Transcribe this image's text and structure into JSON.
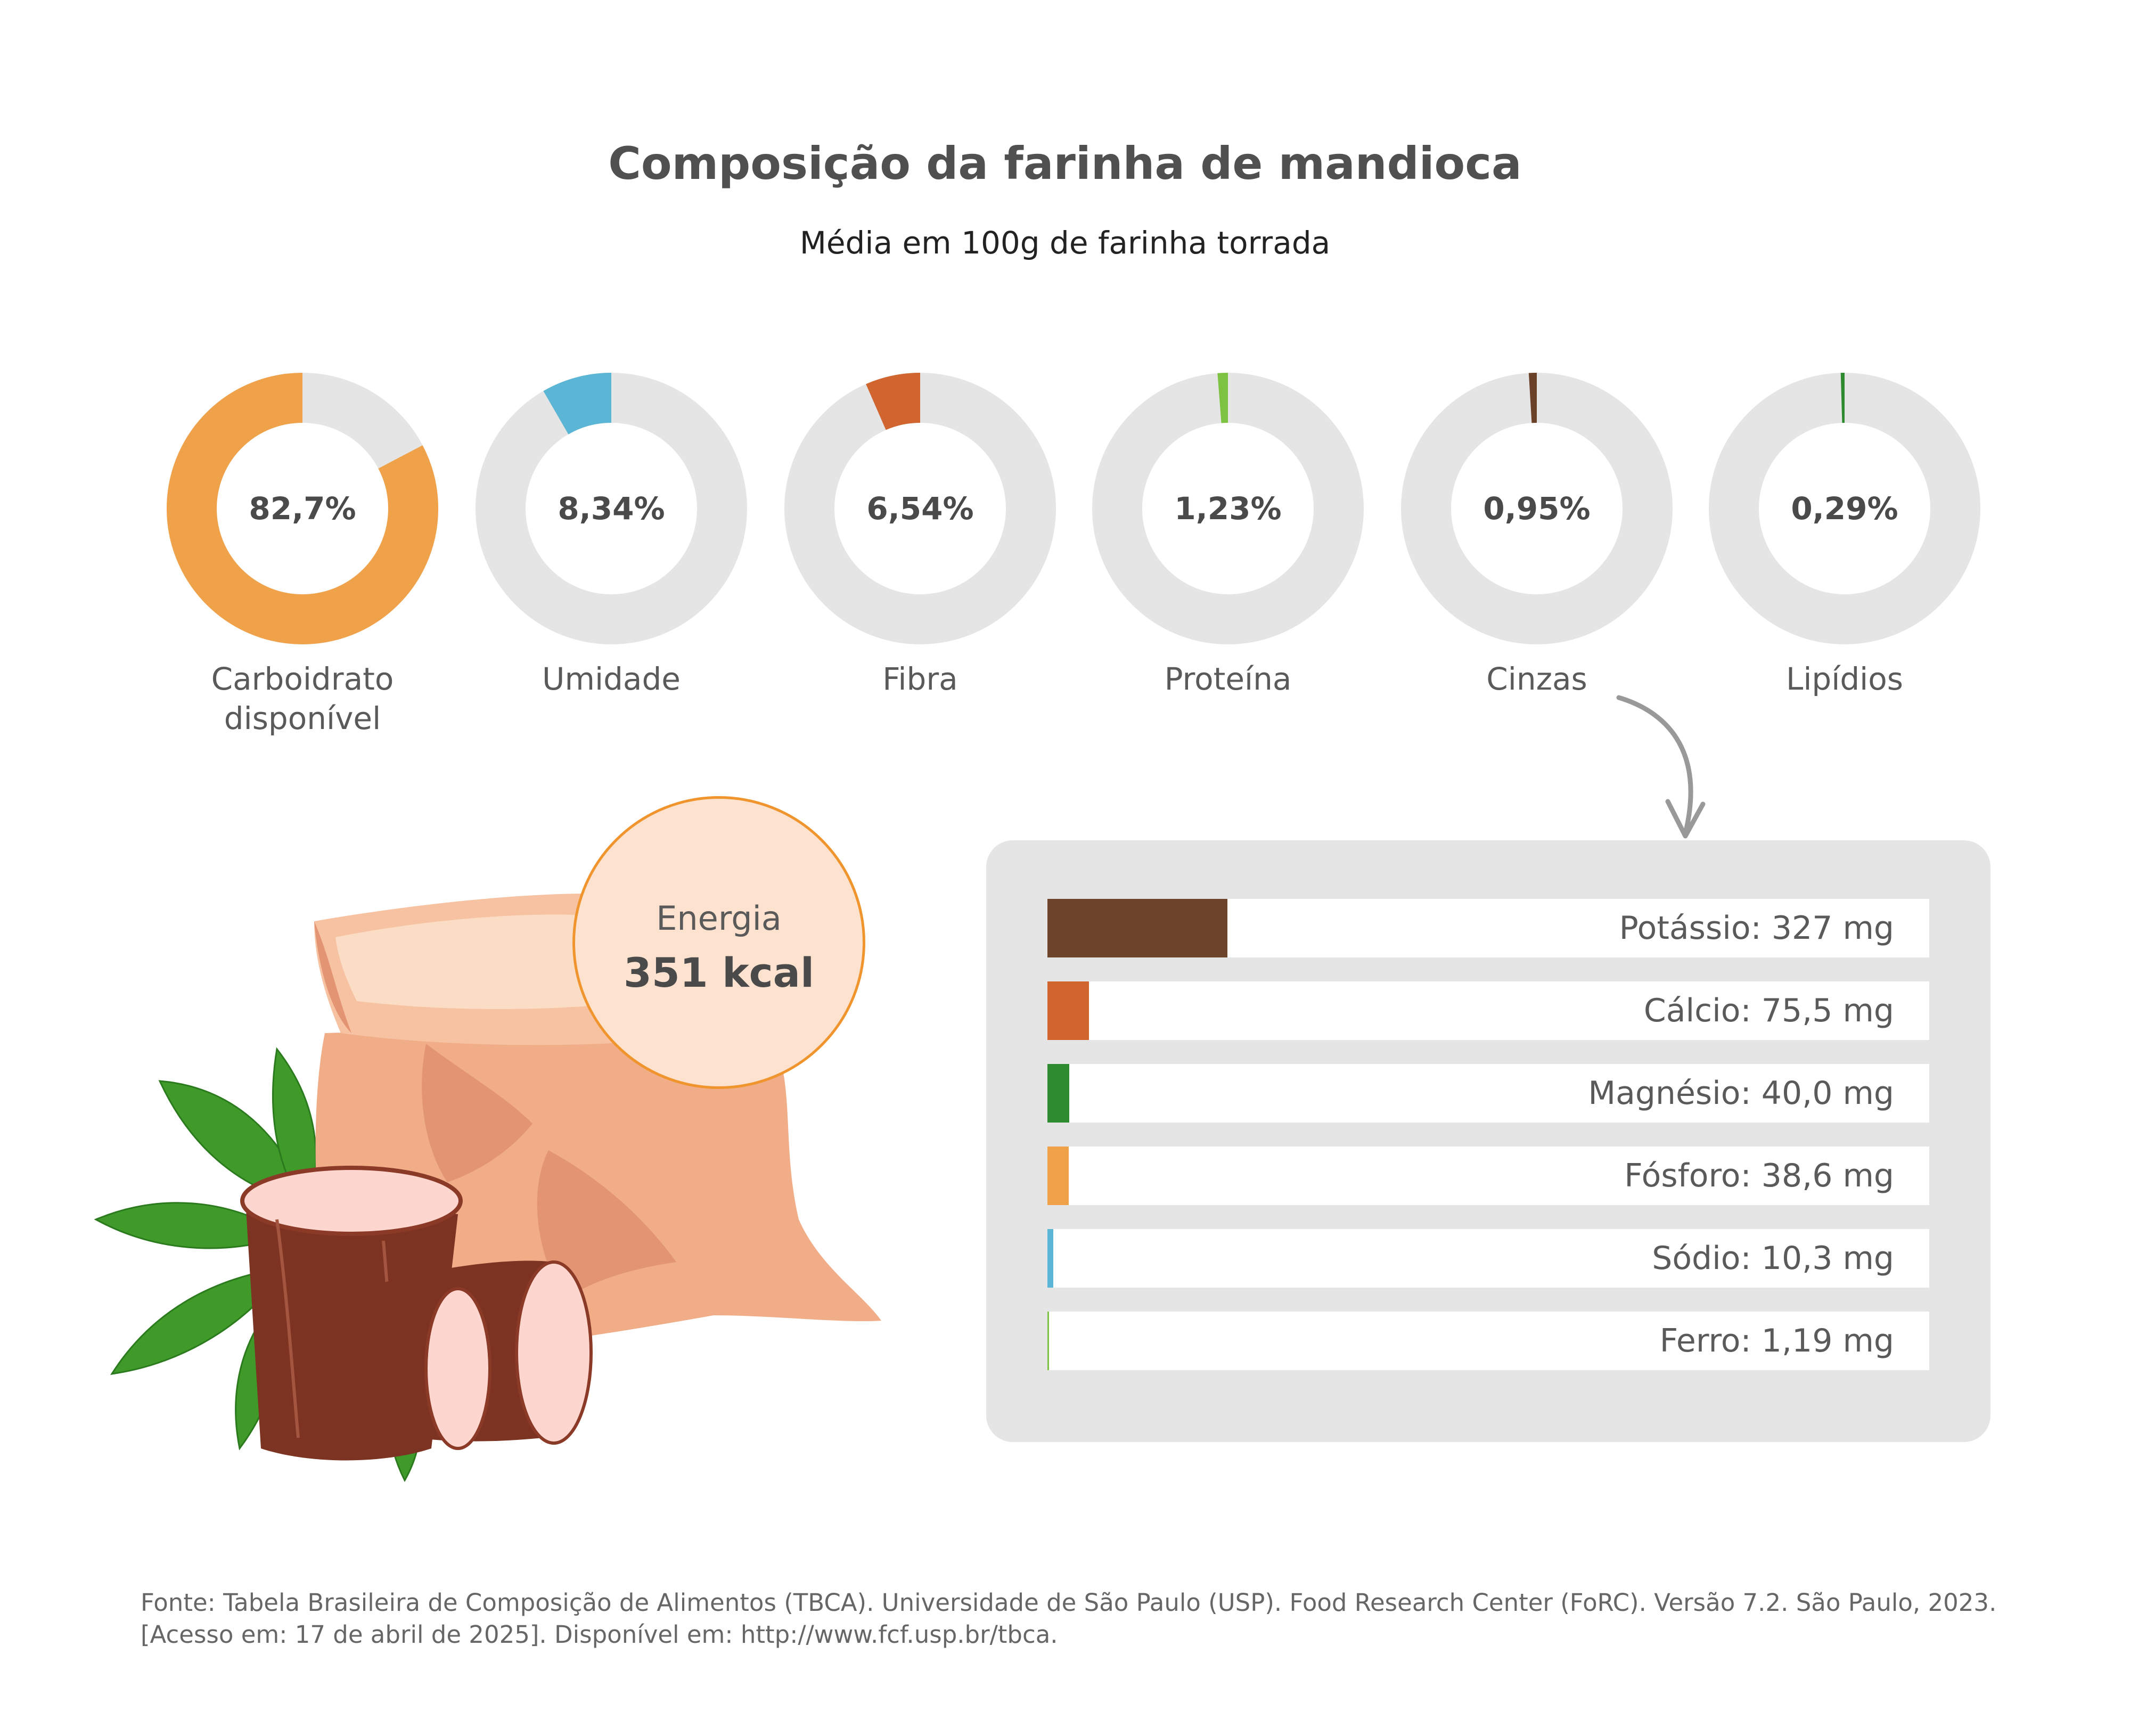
{
  "chart_data": [
    {
      "type": "pie",
      "title": "Composição da farinha de mandioca",
      "subtitle": "Média em 100g de farinha torrada",
      "unit": "%",
      "slices": [
        {
          "name": "Carboidrato disponível",
          "value": 82.7,
          "label": "82,7%",
          "color": "#f0a24a"
        },
        {
          "name": "Umidade",
          "value": 8.34,
          "label": "8,34%",
          "color": "#5bb5d4"
        },
        {
          "name": "Fibra",
          "value": 6.54,
          "label": "6,54%",
          "color": "#d0652f"
        },
        {
          "name": "Proteína",
          "value": 1.23,
          "label": "1,23%",
          "color": "#7ec242"
        },
        {
          "name": "Cinzas",
          "value": 0.95,
          "label": "0,95%",
          "color": "#6b4129"
        },
        {
          "name": "Lipídios",
          "value": 0.29,
          "label": "0,29%",
          "color": "#2e8a2e"
        }
      ],
      "track_color": "#e5e5e5"
    },
    {
      "type": "bar",
      "orientation": "horizontal",
      "unit": "mg",
      "xlim": [
        0,
        1600
      ],
      "bars": [
        {
          "name": "Potássio",
          "value": 327,
          "label": "Potássio: 327 mg",
          "color": "#6b4429"
        },
        {
          "name": "Cálcio",
          "value": 75.5,
          "label": "Cálcio: 75,5 mg",
          "color": "#d0652f"
        },
        {
          "name": "Magnésio",
          "value": 40.0,
          "label": "Magnésio: 40,0 mg",
          "color": "#2e8a2e"
        },
        {
          "name": "Fósforo",
          "value": 38.6,
          "label": "Fósforo: 38,6 mg",
          "color": "#f0a24a"
        },
        {
          "name": "Sódio",
          "value": 10.3,
          "label": "Sódio: 10,3 mg",
          "color": "#5bb5d4"
        },
        {
          "name": "Ferro",
          "value": 1.19,
          "label": "Ferro: 1,19 mg",
          "color": "#7ec242"
        }
      ]
    }
  ],
  "energy": {
    "label": "Energia",
    "value": "351 kcal"
  },
  "illustration": {
    "name": "cassava-and-flour-sack-icon",
    "colors": {
      "sack": "#f0ad88",
      "peel": "#7d3322",
      "flesh": "#fcd6cf",
      "leaf": "#3f9a2a"
    }
  },
  "footer": {
    "line1": "Fonte: Tabela Brasileira de Composição de Alimentos (TBCA). Universidade de São Paulo (USP). Food Research Center (FoRC). Versão 7.2. São Paulo, 2023.",
    "line2": "[Acesso em: 17 de abril de 2025]. Disponível em: http://www.fcf.usp.br/tbca."
  }
}
